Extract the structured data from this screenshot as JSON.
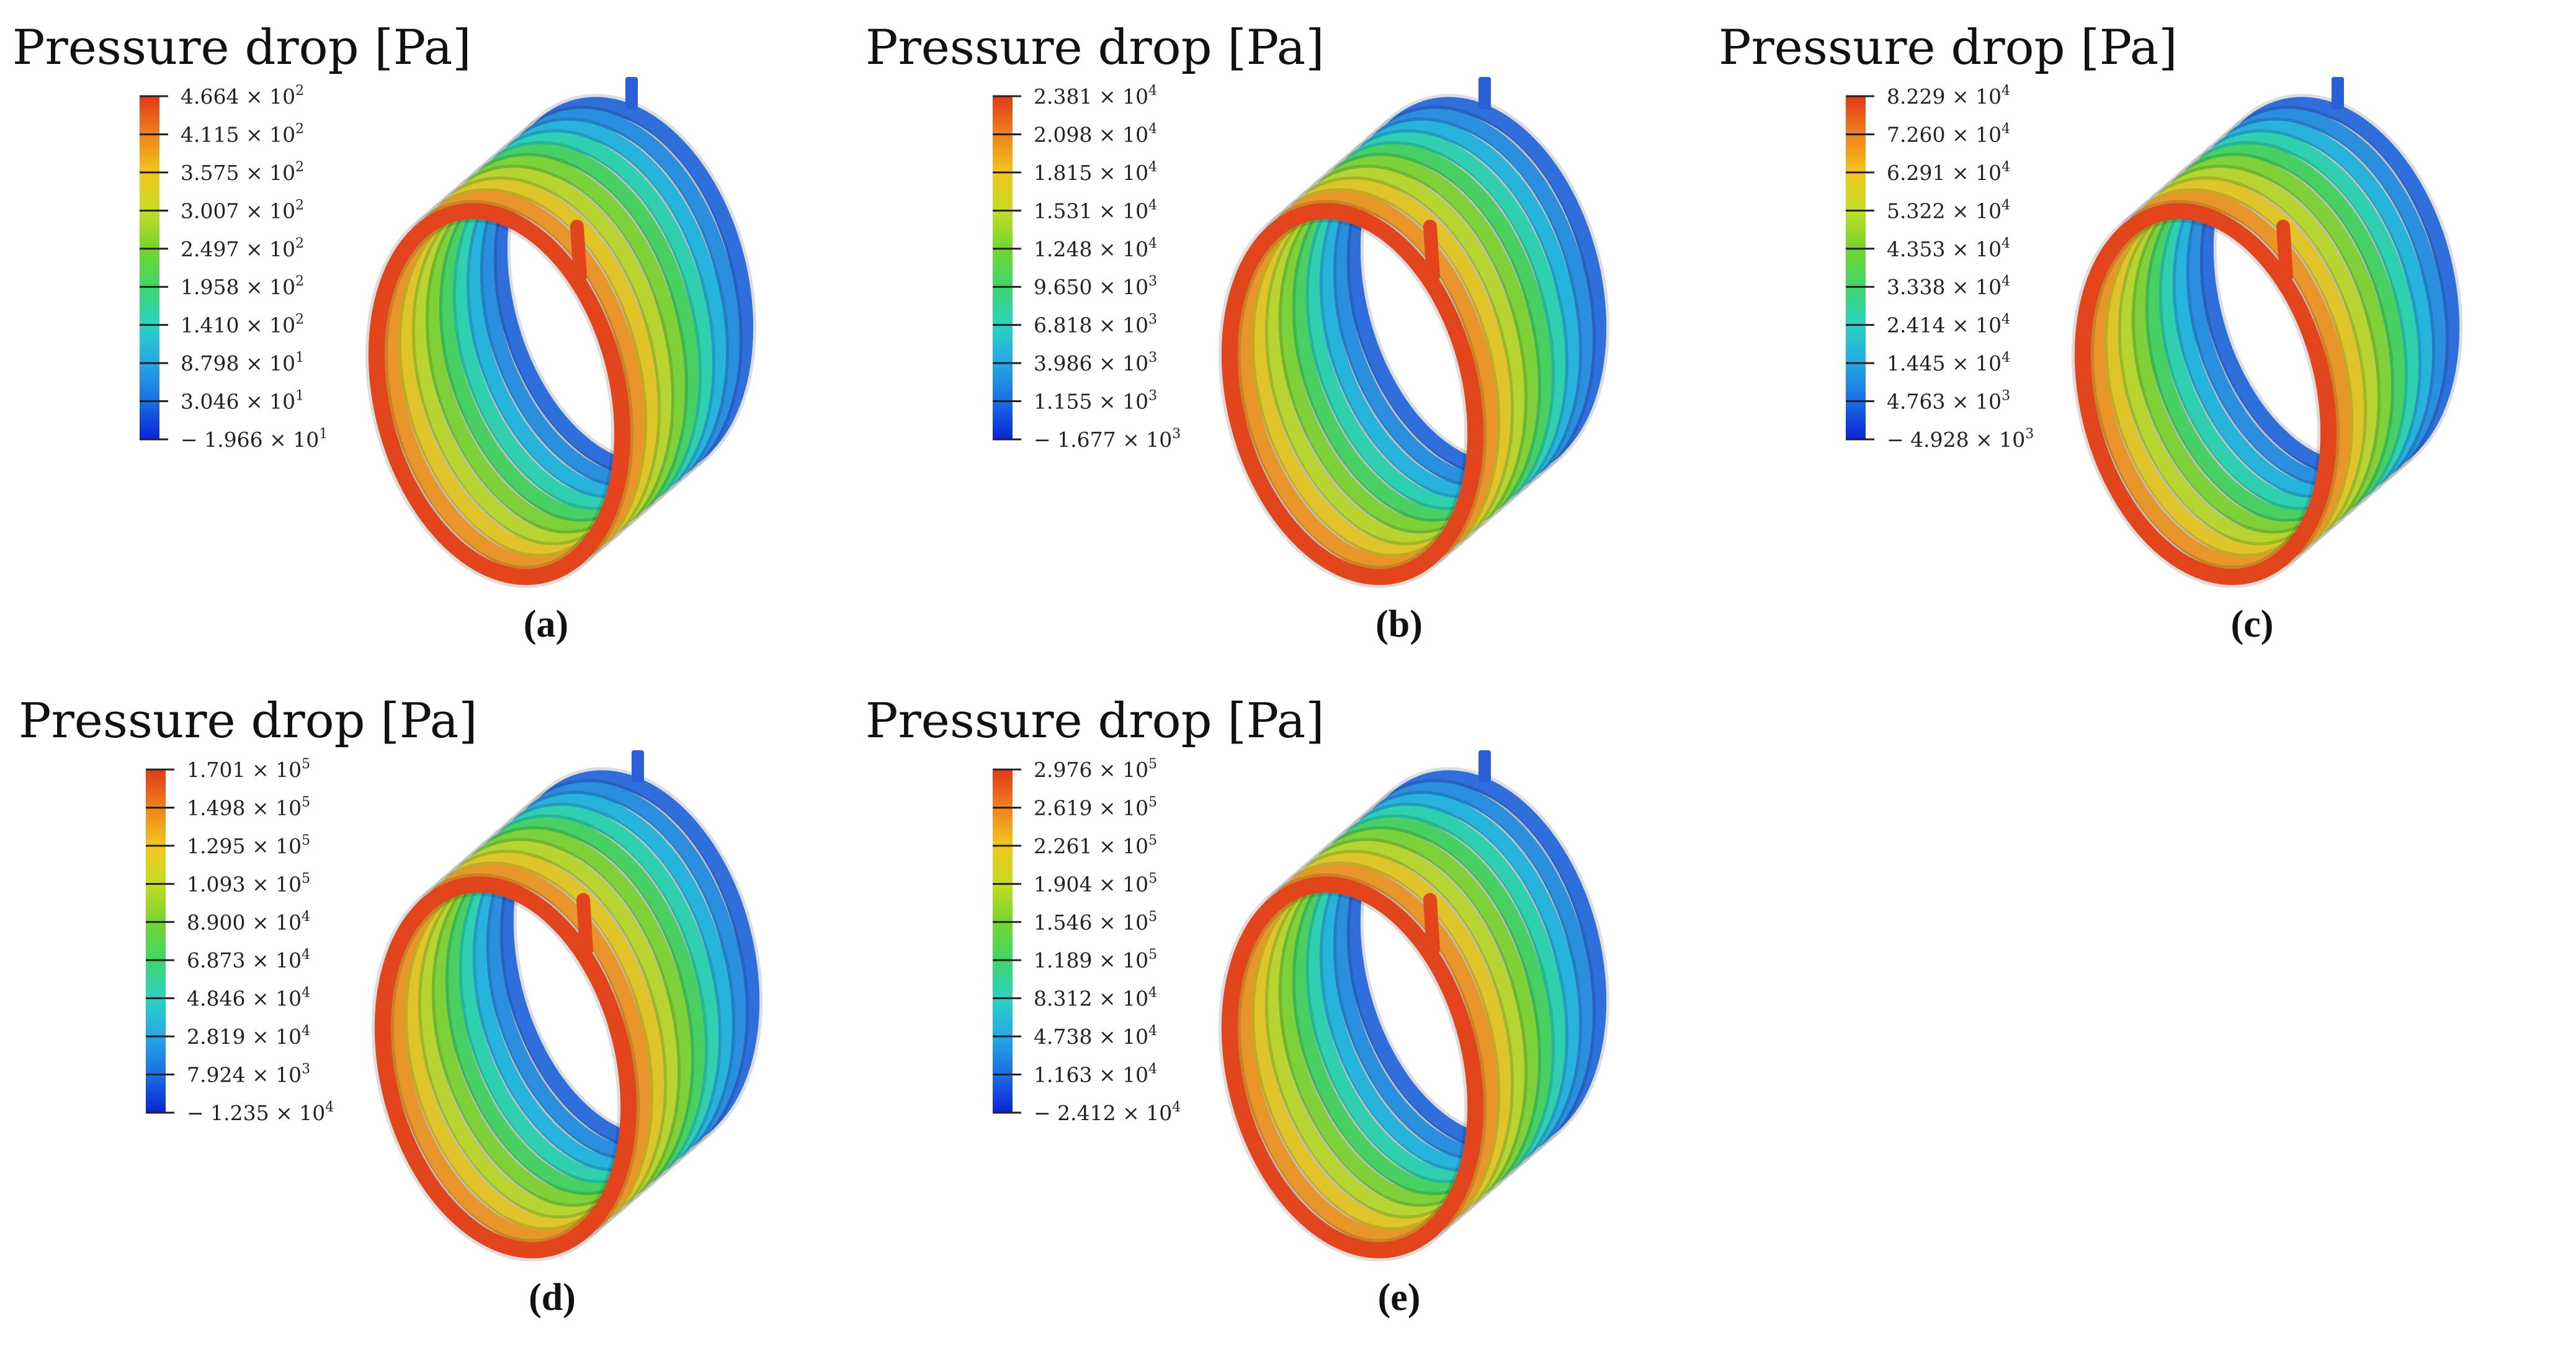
{
  "figure": {
    "panels": [
      {
        "title": "Pressure drop [Pa]",
        "label": "(a)",
        "legend": [
          {
            "mantissa": "4.664",
            "exponent": "2"
          },
          {
            "mantissa": "4.115",
            "exponent": "2"
          },
          {
            "mantissa": "3.575",
            "exponent": "2"
          },
          {
            "mantissa": "3.007",
            "exponent": "2"
          },
          {
            "mantissa": "2.497",
            "exponent": "2"
          },
          {
            "mantissa": "1.958",
            "exponent": "2"
          },
          {
            "mantissa": "1.410",
            "exponent": "2"
          },
          {
            "mantissa": "8.798",
            "exponent": "1"
          },
          {
            "mantissa": "3.046",
            "exponent": "1"
          },
          {
            "mantissa": "− 1.966",
            "exponent": "1"
          }
        ]
      },
      {
        "title": "Pressure drop [Pa]",
        "label": "(b)",
        "legend": [
          {
            "mantissa": "2.381",
            "exponent": "4"
          },
          {
            "mantissa": "2.098",
            "exponent": "4"
          },
          {
            "mantissa": "1.815",
            "exponent": "4"
          },
          {
            "mantissa": "1.531",
            "exponent": "4"
          },
          {
            "mantissa": "1.248",
            "exponent": "4"
          },
          {
            "mantissa": "9.650",
            "exponent": "3"
          },
          {
            "mantissa": "6.818",
            "exponent": "3"
          },
          {
            "mantissa": "3.986",
            "exponent": "3"
          },
          {
            "mantissa": "1.155",
            "exponent": "3"
          },
          {
            "mantissa": "− 1.677",
            "exponent": "3"
          }
        ]
      },
      {
        "title": "Pressure drop [Pa]",
        "label": "(c)",
        "legend": [
          {
            "mantissa": "8.229",
            "exponent": "4"
          },
          {
            "mantissa": "7.260",
            "exponent": "4"
          },
          {
            "mantissa": "6.291",
            "exponent": "4"
          },
          {
            "mantissa": "5.322",
            "exponent": "4"
          },
          {
            "mantissa": "4.353",
            "exponent": "4"
          },
          {
            "mantissa": "3.338",
            "exponent": "4"
          },
          {
            "mantissa": "2.414",
            "exponent": "4"
          },
          {
            "mantissa": "1.445",
            "exponent": "4"
          },
          {
            "mantissa": "4.763",
            "exponent": "3"
          },
          {
            "mantissa": "− 4.928",
            "exponent": "3"
          }
        ]
      },
      {
        "title": "Pressure drop [Pa]",
        "label": "(d)",
        "legend": [
          {
            "mantissa": "1.701",
            "exponent": "5"
          },
          {
            "mantissa": "1.498",
            "exponent": "5"
          },
          {
            "mantissa": "1.295",
            "exponent": "5"
          },
          {
            "mantissa": "1.093",
            "exponent": "5"
          },
          {
            "mantissa": "8.900",
            "exponent": "4"
          },
          {
            "mantissa": "6.873",
            "exponent": "4"
          },
          {
            "mantissa": "4.846",
            "exponent": "4"
          },
          {
            "mantissa": "2.819",
            "exponent": "4"
          },
          {
            "mantissa": "7.924",
            "exponent": "3"
          },
          {
            "mantissa": "− 1.235",
            "exponent": "4"
          }
        ]
      },
      {
        "title": "Pressure drop [Pa]",
        "label": "(e)",
        "legend": [
          {
            "mantissa": "2.976",
            "exponent": "5"
          },
          {
            "mantissa": "2.619",
            "exponent": "5"
          },
          {
            "mantissa": "2.261",
            "exponent": "5"
          },
          {
            "mantissa": "1.904",
            "exponent": "5"
          },
          {
            "mantissa": "1.546",
            "exponent": "5"
          },
          {
            "mantissa": "1.189",
            "exponent": "5"
          },
          {
            "mantissa": "8.312",
            "exponent": "4"
          },
          {
            "mantissa": "4.738",
            "exponent": "4"
          },
          {
            "mantissa": "1.163",
            "exponent": "4"
          },
          {
            "mantissa": "− 2.412",
            "exponent": "4"
          }
        ]
      }
    ],
    "colormap": [
      "#0b24d6",
      "#1a6fe0",
      "#25a8e6",
      "#2ad3c2",
      "#3fd66b",
      "#74d62d",
      "#c4dc24",
      "#f1c71d",
      "#f0811c",
      "#e03a18"
    ],
    "coil_turn_colors": [
      "#e2451c",
      "#e8962a",
      "#dfc52a",
      "#b7d430",
      "#7fd13a",
      "#48d062",
      "#2ed0b0",
      "#27b4dc",
      "#2a8fdf",
      "#2f6fdb"
    ],
    "inlet_color": "#2b5fd9"
  }
}
